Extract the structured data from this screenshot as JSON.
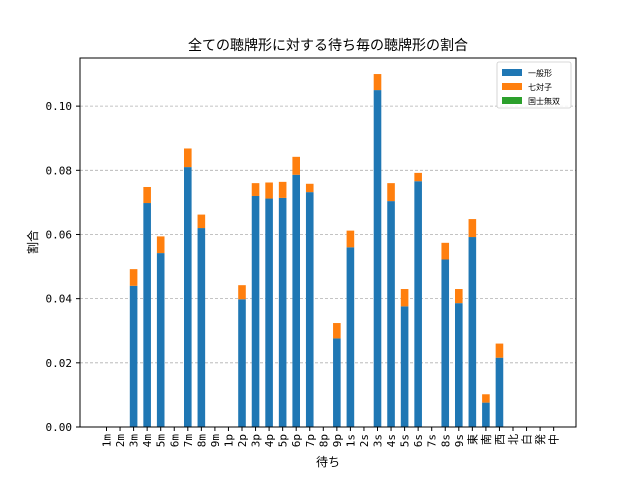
{
  "chart_data": {
    "type": "bar",
    "stacked": true,
    "title": "全ての聴牌形に対する待ち毎の聴牌形の割合",
    "xlabel": "待ち",
    "ylabel": "割合",
    "ylim": [
      0,
      0.115
    ],
    "yticks": [
      "0.00",
      "0.02",
      "0.04",
      "0.06",
      "0.08",
      "0.10"
    ],
    "grid": "y-dashed",
    "legend_position": "top-right",
    "categories": [
      "1m",
      "2m",
      "3m",
      "4m",
      "5m",
      "6m",
      "7m",
      "8m",
      "9m",
      "1p",
      "2p",
      "3p",
      "4p",
      "5p",
      "6p",
      "7p",
      "8p",
      "9p",
      "1s",
      "2s",
      "3s",
      "4s",
      "5s",
      "6s",
      "7s",
      "8s",
      "9s",
      "東",
      "南",
      "西",
      "北",
      "白",
      "発",
      "中"
    ],
    "series": [
      {
        "name": "一般形",
        "color": "#1f77b4",
        "values": [
          0,
          0,
          0.044,
          0.0698,
          0.0542,
          0,
          0.081,
          0.062,
          0,
          0,
          0.0398,
          0.072,
          0.0712,
          0.0714,
          0.0786,
          0.0732,
          0,
          0.0276,
          0.056,
          0,
          0.105,
          0.0704,
          0.0376,
          0.0766,
          0,
          0.0522,
          0.0386,
          0.0592,
          0.0076,
          0.0216,
          0,
          0,
          0,
          0
        ]
      },
      {
        "name": "七対子",
        "color": "#ff7f0e",
        "values": [
          0,
          0,
          0.0052,
          0.005,
          0.0052,
          0,
          0.0058,
          0.0042,
          0,
          0,
          0.0044,
          0.004,
          0.005,
          0.005,
          0.0056,
          0.0026,
          0,
          0.0048,
          0.0052,
          0,
          0.005,
          0.0056,
          0.0054,
          0.0026,
          0,
          0.0052,
          0.0044,
          0.0056,
          0.0026,
          0.0044,
          0,
          0,
          0,
          0
        ]
      },
      {
        "name": "国士無双",
        "color": "#2ca02c",
        "values": [
          0,
          0,
          0,
          0,
          0,
          0,
          0,
          0,
          0,
          0,
          0,
          0,
          0,
          0,
          0,
          0,
          0,
          0,
          0,
          0,
          0,
          0,
          0,
          0,
          0,
          0,
          0,
          0,
          0,
          0,
          0,
          0,
          0,
          0
        ]
      }
    ]
  }
}
